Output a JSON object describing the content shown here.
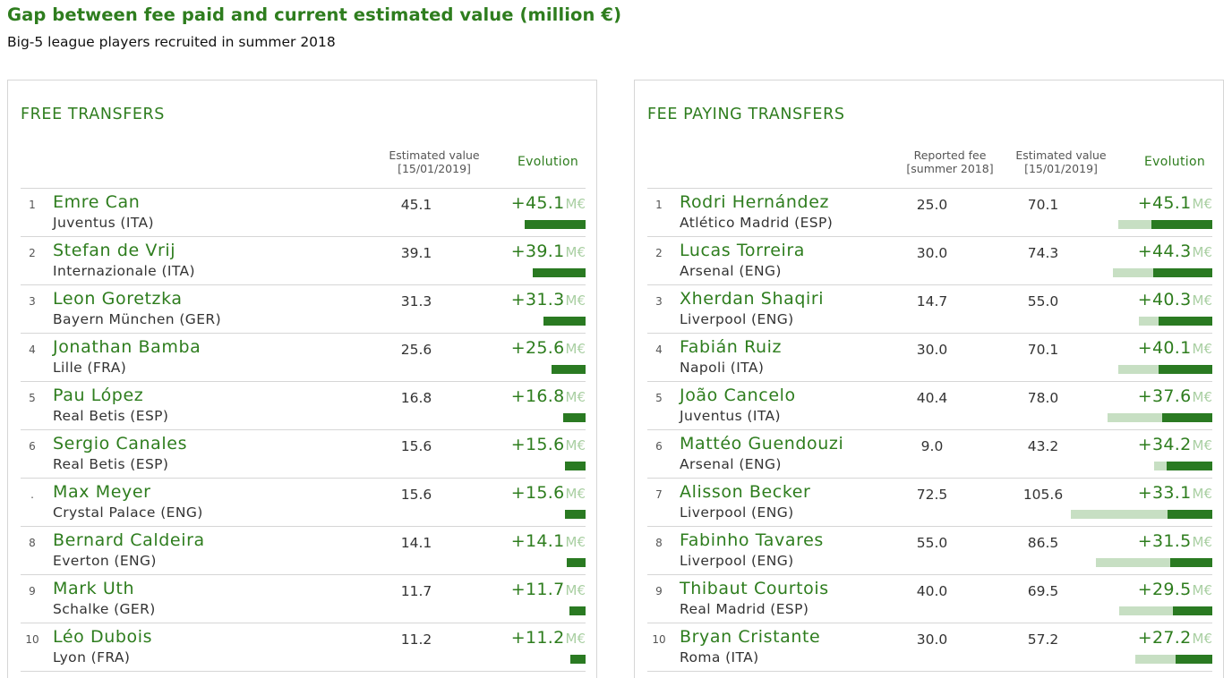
{
  "title": "Gap between fee paid and current estimated value (million €)",
  "subtitle": "Big-5 league players recruited in summer 2018",
  "colors": {
    "accent": "#2e7d1e",
    "gain_bar": "#2a7a22",
    "fee_bar": "#c7dfc3",
    "unit": "#a9cfa2"
  },
  "unit_label": "M€",
  "free": {
    "title": "FREE TRANSFERS",
    "col_value_line1": "Estimated value",
    "col_value_line2": "[15/01/2019]",
    "col_evolution": "Evolution"
  },
  "paying": {
    "title": "FEE PAYING TRANSFERS",
    "col_fee_line1": "Reported fee",
    "col_fee_line2": "[summer 2018]",
    "col_value_line1": "Estimated value",
    "col_value_line2": "[15/01/2019]",
    "col_evolution": "Evolution"
  },
  "chart_data": [
    {
      "type": "table",
      "title": "FREE TRANSFERS",
      "columns": [
        "Estimated value [15/01/2019]",
        "Evolution"
      ],
      "rows": [
        {
          "rank": "1",
          "player": "Emre Can",
          "club": "Juventus (ITA)",
          "value": "45.1",
          "evolution": "+45.1",
          "gain": 45.1
        },
        {
          "rank": "2",
          "player": "Stefan de Vrij",
          "club": "Internazionale (ITA)",
          "value": "39.1",
          "evolution": "+39.1",
          "gain": 39.1
        },
        {
          "rank": "3",
          "player": "Leon Goretzka",
          "club": "Bayern München (GER)",
          "value": "31.3",
          "evolution": "+31.3",
          "gain": 31.3
        },
        {
          "rank": "4",
          "player": "Jonathan Bamba",
          "club": "Lille (FRA)",
          "value": "25.6",
          "evolution": "+25.6",
          "gain": 25.6
        },
        {
          "rank": "5",
          "player": "Pau López",
          "club": "Real Betis (ESP)",
          "value": "16.8",
          "evolution": "+16.8",
          "gain": 16.8
        },
        {
          "rank": "6",
          "player": "Sergio Canales",
          "club": "Real Betis (ESP)",
          "value": "15.6",
          "evolution": "+15.6",
          "gain": 15.6
        },
        {
          "rank": ".",
          "player": "Max Meyer",
          "club": "Crystal Palace (ENG)",
          "value": "15.6",
          "evolution": "+15.6",
          "gain": 15.6
        },
        {
          "rank": "8",
          "player": "Bernard Caldeira",
          "club": "Everton (ENG)",
          "value": "14.1",
          "evolution": "+14.1",
          "gain": 14.1
        },
        {
          "rank": "9",
          "player": "Mark Uth",
          "club": "Schalke (GER)",
          "value": "11.7",
          "evolution": "+11.7",
          "gain": 11.7
        },
        {
          "rank": "10",
          "player": "Léo Dubois",
          "club": "Lyon (FRA)",
          "value": "11.2",
          "evolution": "+11.2",
          "gain": 11.2
        }
      ]
    },
    {
      "type": "table",
      "title": "FEE PAYING TRANSFERS",
      "columns": [
        "Reported fee [summer 2018]",
        "Estimated value [15/01/2019]",
        "Evolution"
      ],
      "rows": [
        {
          "rank": "1",
          "player": "Rodri Hernández",
          "club": "Atlético Madrid (ESP)",
          "fee": "25.0",
          "value": "70.1",
          "evolution": "+45.1",
          "fee_num": 25.0,
          "gain": 45.1
        },
        {
          "rank": "2",
          "player": "Lucas Torreira",
          "club": "Arsenal (ENG)",
          "fee": "30.0",
          "value": "74.3",
          "evolution": "+44.3",
          "fee_num": 30.0,
          "gain": 44.3
        },
        {
          "rank": "3",
          "player": "Xherdan Shaqiri",
          "club": "Liverpool (ENG)",
          "fee": "14.7",
          "value": "55.0",
          "evolution": "+40.3",
          "fee_num": 14.7,
          "gain": 40.3
        },
        {
          "rank": "4",
          "player": "Fabián Ruiz",
          "club": "Napoli (ITA)",
          "fee": "30.0",
          "value": "70.1",
          "evolution": "+40.1",
          "fee_num": 30.0,
          "gain": 40.1
        },
        {
          "rank": "5",
          "player": "João Cancelo",
          "club": "Juventus (ITA)",
          "fee": "40.4",
          "value": "78.0",
          "evolution": "+37.6",
          "fee_num": 40.4,
          "gain": 37.6
        },
        {
          "rank": "6",
          "player": "Mattéo Guendouzi",
          "club": "Arsenal (ENG)",
          "fee": "9.0",
          "value": "43.2",
          "evolution": "+34.2",
          "fee_num": 9.0,
          "gain": 34.2
        },
        {
          "rank": "7",
          "player": "Alisson Becker",
          "club": "Liverpool (ENG)",
          "fee": "72.5",
          "value": "105.6",
          "evolution": "+33.1",
          "fee_num": 72.5,
          "gain": 33.1
        },
        {
          "rank": "8",
          "player": "Fabinho Tavares",
          "club": "Liverpool (ENG)",
          "fee": "55.0",
          "value": "86.5",
          "evolution": "+31.5",
          "fee_num": 55.0,
          "gain": 31.5
        },
        {
          "rank": "9",
          "player": "Thibaut Courtois",
          "club": "Real Madrid (ESP)",
          "fee": "40.0",
          "value": "69.5",
          "evolution": "+29.5",
          "fee_num": 40.0,
          "gain": 29.5
        },
        {
          "rank": "10",
          "player": "Bryan Cristante",
          "club": "Roma (ITA)",
          "fee": "30.0",
          "value": "57.2",
          "evolution": "+27.2",
          "fee_num": 30.0,
          "gain": 27.2
        }
      ]
    }
  ]
}
